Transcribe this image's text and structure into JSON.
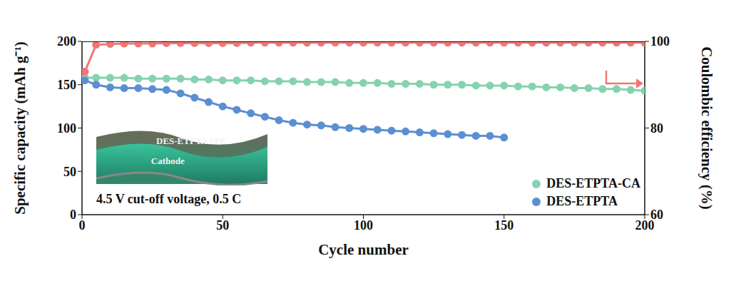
{
  "chart_data": {
    "type": "line",
    "x_label": "Cycle number",
    "y_label": "Specific capacity (mAh g⁻¹)",
    "y2_label": "Coulombic efficiency (%)",
    "annotations": [
      "4.5 V cut-off voltage, 0.5 C"
    ],
    "inset_labels": [
      "DES-ETPTA SPE",
      "Cathode"
    ],
    "x": [
      1,
      5,
      10,
      15,
      20,
      25,
      30,
      35,
      40,
      45,
      50,
      55,
      60,
      65,
      70,
      75,
      80,
      85,
      90,
      95,
      100,
      105,
      110,
      115,
      120,
      125,
      130,
      135,
      140,
      145,
      150,
      155,
      160,
      165,
      170,
      175,
      180,
      185,
      190,
      195,
      200
    ],
    "series": [
      {
        "name": "DES-ETPTA-CA",
        "color": "#86d2b0",
        "marker": "circle",
        "values": [
          158,
          158,
          158,
          158,
          157,
          157,
          157,
          157,
          156,
          156,
          155,
          155,
          155,
          154,
          154,
          154,
          153,
          153,
          153,
          152,
          152,
          152,
          151,
          151,
          151,
          150,
          150,
          150,
          149,
          149,
          149,
          148,
          148,
          147,
          147,
          146,
          146,
          145,
          145,
          144,
          143
        ]
      },
      {
        "name": "DES-ETPTA",
        "color": "#5b8fd2",
        "marker": "circle",
        "values": [
          155,
          150,
          147,
          146,
          146,
          145,
          144,
          140,
          135,
          130,
          125,
          121,
          117,
          113,
          109,
          106,
          104,
          103,
          101,
          100,
          99,
          98,
          97,
          96,
          95,
          94,
          93,
          92,
          91,
          91,
          89,
          null,
          null,
          null,
          null,
          null,
          null,
          null,
          null,
          null,
          null
        ]
      },
      {
        "color": "#f07676",
        "marker": "circle",
        "axis": "y2",
        "values": [
          93,
          99.2,
          99.4,
          99.5,
          99.5,
          99.5,
          99.6,
          99.6,
          99.6,
          99.6,
          99.6,
          99.6,
          99.7,
          99.7,
          99.7,
          99.7,
          99.7,
          99.7,
          99.7,
          99.7,
          99.7,
          99.7,
          99.7,
          99.7,
          99.7,
          99.7,
          99.7,
          99.7,
          99.7,
          99.7,
          99.7,
          99.7,
          99.7,
          99.7,
          99.7,
          99.7,
          99.7,
          99.7,
          99.7,
          99.7,
          99.7
        ]
      }
    ],
    "xlim": [
      0,
      200
    ],
    "xticks": [
      0,
      50,
      100,
      150,
      200
    ],
    "ylim": [
      0,
      200
    ],
    "yticks": [
      0,
      50,
      100,
      150,
      200
    ],
    "y2lim": [
      60,
      100
    ],
    "y2ticks": [
      60,
      80,
      100
    ],
    "legend": "lower right"
  }
}
